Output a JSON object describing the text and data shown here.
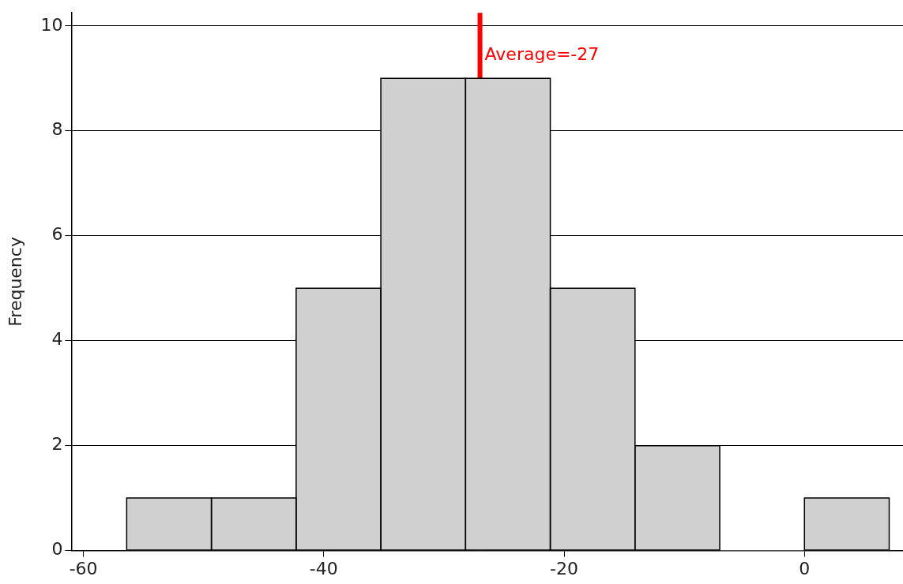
{
  "chart_data": {
    "type": "histogram",
    "ylabel": "Frequency",
    "bins": [
      -56.4,
      -49.35,
      -42.3,
      -35.25,
      -28.2,
      -21.15,
      -14.1,
      -7.05,
      0,
      7.05
    ],
    "values": [
      1,
      1,
      5,
      9,
      9,
      5,
      2,
      0,
      1
    ],
    "color": "#d0d0d0",
    "xlim": [
      -61,
      8.2
    ],
    "xticks": [
      -60,
      -40,
      -20,
      0
    ],
    "ylim": [
      0,
      10.25
    ],
    "yticks": [
      0,
      2,
      4,
      6,
      8,
      10
    ],
    "grid": "y",
    "legend": false,
    "ref_lines": [
      {
        "axis": "x",
        "value": -27,
        "label": "Average=-27",
        "color": "#ff0000"
      }
    ]
  }
}
